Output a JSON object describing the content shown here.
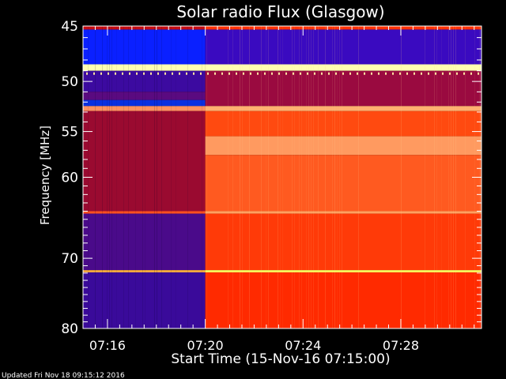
{
  "chart_data": {
    "type": "heatmap",
    "title": "Solar radio Flux (Glasgow)",
    "ylabel": "Frequency [MHz]",
    "xlabel": "Start Time (15-Nov-16 07:15:00)",
    "footer": "Updated Fri Nov 18 09:15:12 2016",
    "x_range_minutes": [
      0,
      16.3
    ],
    "x_ticks": [
      {
        "value": 1,
        "label": "07:16"
      },
      {
        "value": 5,
        "label": "07:20"
      },
      {
        "value": 9,
        "label": "07:24"
      },
      {
        "value": 13,
        "label": "07:28"
      }
    ],
    "y_range_mhz": [
      45,
      80
    ],
    "y_scale": "log",
    "y_ticks": [
      {
        "value": 45,
        "label": "45"
      },
      {
        "value": 50,
        "label": "50"
      },
      {
        "value": 55,
        "label": "55"
      },
      {
        "value": 60,
        "label": "60"
      },
      {
        "value": 70,
        "label": "70"
      },
      {
        "value": 80,
        "label": "80"
      }
    ],
    "y_minor_ticks": [
      46,
      47,
      48,
      49,
      51,
      52,
      53,
      54,
      56,
      57,
      58,
      59,
      61,
      62,
      63,
      64,
      65,
      66,
      67,
      68,
      69,
      71,
      72,
      73,
      74,
      75,
      76,
      77,
      78,
      79
    ],
    "x_minor_step_minutes": 0.5,
    "transition_minutes": 5.0,
    "colormap": [
      "#2a0a9a",
      "#5a0aa0",
      "#8a0a40",
      "#c40a10",
      "#ff3000",
      "#ff6020",
      "#ff9050",
      "#ffe070",
      "#ffffb0"
    ],
    "bands_before": [
      {
        "f_lo": 45,
        "f_hi": 45.3,
        "color": "#c40a10"
      },
      {
        "f_lo": 45.3,
        "f_hi": 48.4,
        "color": "#0a20ff"
      },
      {
        "f_lo": 48.4,
        "f_hi": 49.0,
        "color": "#ffffb0"
      },
      {
        "f_lo": 49.0,
        "f_hi": 51.0,
        "color": "#3c0aa0"
      },
      {
        "f_lo": 51.0,
        "f_hi": 51.8,
        "color": "#5a0a80"
      },
      {
        "f_lo": 51.8,
        "f_hi": 52.4,
        "color": "#0a30e0"
      },
      {
        "f_lo": 52.4,
        "f_hi": 52.9,
        "color": "#ff9060"
      },
      {
        "f_lo": 52.9,
        "f_hi": 64.0,
        "color": "#9a0a30"
      },
      {
        "f_lo": 64.0,
        "f_hi": 64.3,
        "color": "#ff5020"
      },
      {
        "f_lo": 64.3,
        "f_hi": 71.6,
        "color": "#4a0a8a"
      },
      {
        "f_lo": 71.6,
        "f_hi": 71.9,
        "color": "#ffb040"
      },
      {
        "f_lo": 71.9,
        "f_hi": 80,
        "color": "#3a0a9a"
      }
    ],
    "bands_after": [
      {
        "f_lo": 45,
        "f_hi": 45.3,
        "color": "#ff3000"
      },
      {
        "f_lo": 45.3,
        "f_hi": 48.4,
        "color": "#3a0ac0"
      },
      {
        "f_lo": 48.4,
        "f_hi": 49.0,
        "color": "#ffffb0"
      },
      {
        "f_lo": 49.0,
        "f_hi": 52.4,
        "color": "#9a0a40"
      },
      {
        "f_lo": 52.4,
        "f_hi": 52.9,
        "color": "#ffb070"
      },
      {
        "f_lo": 52.9,
        "f_hi": 55.5,
        "color": "#ff4a10"
      },
      {
        "f_lo": 55.5,
        "f_hi": 57.5,
        "color": "#ff9a60"
      },
      {
        "f_lo": 57.5,
        "f_hi": 64.0,
        "color": "#ff5a20"
      },
      {
        "f_lo": 64.0,
        "f_hi": 64.3,
        "color": "#ffa060"
      },
      {
        "f_lo": 64.3,
        "f_hi": 71.6,
        "color": "#ff3a08"
      },
      {
        "f_lo": 71.6,
        "f_hi": 71.9,
        "color": "#ffff60"
      },
      {
        "f_lo": 71.9,
        "f_hi": 80,
        "color": "#ff2a00"
      }
    ]
  }
}
